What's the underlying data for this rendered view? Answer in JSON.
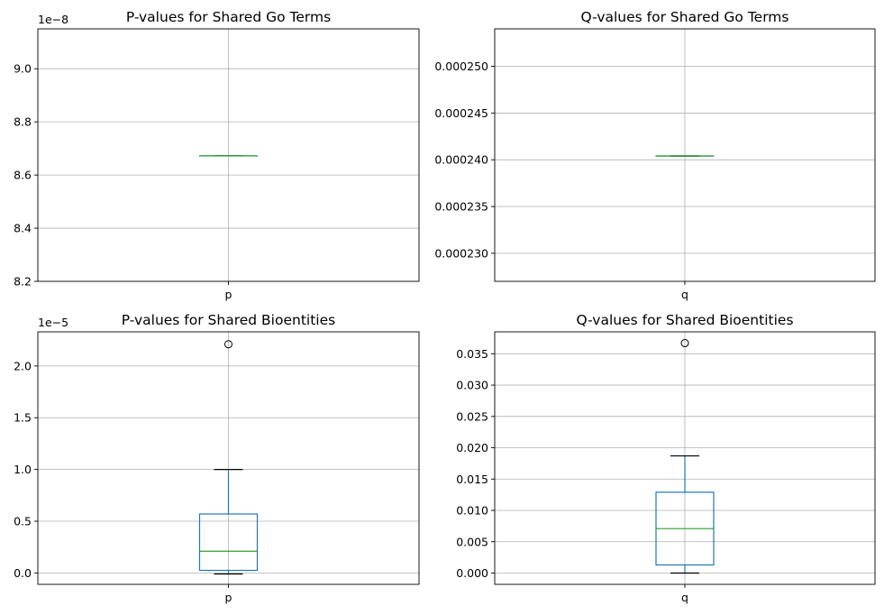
{
  "chart_data": [
    {
      "type": "box",
      "title": "P-values for Shared Go Terms",
      "categories": [
        "p"
      ],
      "offset_text": "1e−8",
      "ylim": [
        8.2,
        9.15
      ],
      "yticks": [
        8.2,
        8.4,
        8.6,
        8.8,
        9.0
      ],
      "ytick_labels": [
        "8.2",
        "8.4",
        "8.6",
        "8.8",
        "9.0"
      ],
      "grid": true,
      "box": {
        "whisker_low": 8.672,
        "q1": 8.672,
        "median": 8.672,
        "q3": 8.672,
        "whisker_high": 8.672,
        "outliers": []
      }
    },
    {
      "type": "box",
      "title": "Q-values for Shared Go Terms",
      "categories": [
        "q"
      ],
      "offset_text": "",
      "ylim": [
        0.000227,
        0.000254
      ],
      "yticks": [
        0.00023,
        0.000235,
        0.00024,
        0.000245,
        0.00025
      ],
      "ytick_labels": [
        "0.000230",
        "0.000235",
        "0.000240",
        "0.000245",
        "0.000250"
      ],
      "grid": true,
      "box": {
        "whisker_low": 0.0002404,
        "q1": 0.0002404,
        "median": 0.0002404,
        "q3": 0.0002404,
        "whisker_high": 0.0002404,
        "outliers": []
      }
    },
    {
      "type": "box",
      "title": "P-values for Shared Bioentities",
      "categories": [
        "p"
      ],
      "offset_text": "1e−5",
      "ylim": [
        -0.11,
        2.33
      ],
      "yticks": [
        0.0,
        0.5,
        1.0,
        1.5,
        2.0
      ],
      "ytick_labels": [
        "0.0",
        "0.5",
        "1.0",
        "1.5",
        "2.0"
      ],
      "grid": true,
      "box": {
        "whisker_low": -0.01,
        "q1": 0.025,
        "median": 0.21,
        "q3": 0.57,
        "whisker_high": 1.0,
        "outliers": [
          2.21
        ]
      }
    },
    {
      "type": "box",
      "title": "Q-values for Shared Bioentities",
      "categories": [
        "q"
      ],
      "offset_text": "",
      "ylim": [
        -0.0018,
        0.0385
      ],
      "yticks": [
        0.0,
        0.005,
        0.01,
        0.015,
        0.02,
        0.025,
        0.03,
        0.035
      ],
      "ytick_labels": [
        "0.000",
        "0.005",
        "0.010",
        "0.015",
        "0.020",
        "0.025",
        "0.030",
        "0.035"
      ],
      "grid": true,
      "box": {
        "whisker_low": 0.0,
        "q1": 0.0013,
        "median": 0.0071,
        "q3": 0.0129,
        "whisker_high": 0.0187,
        "outliers": [
          0.0367
        ]
      }
    }
  ],
  "colors": {
    "box": "#1f77b4",
    "median": "#2ca02c",
    "grid": "#b0b0b0",
    "axis": "#000000"
  }
}
